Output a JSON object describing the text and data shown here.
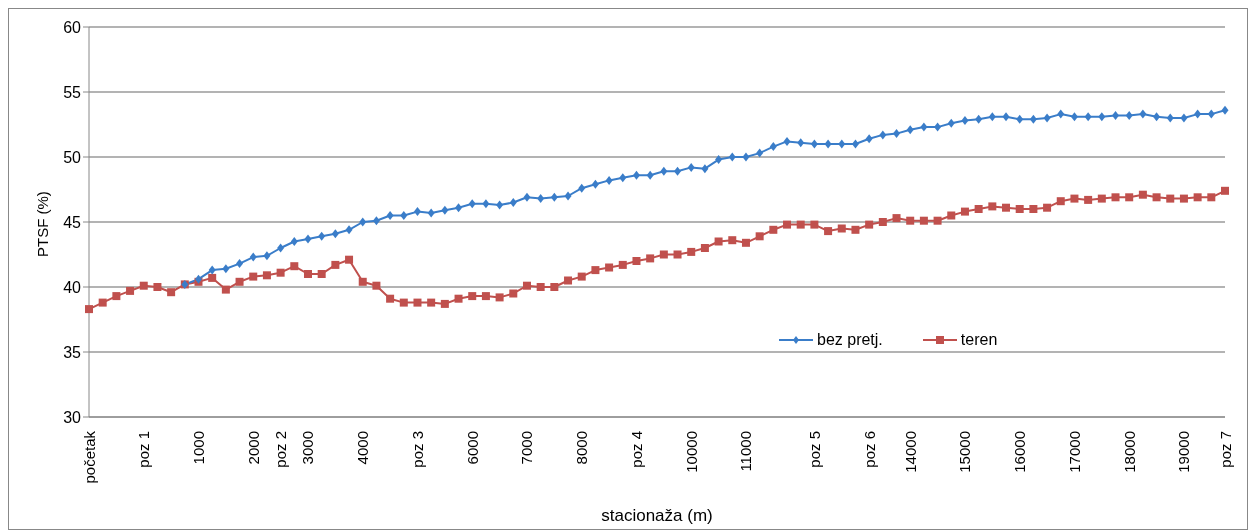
{
  "chart_data": {
    "type": "line",
    "xlabel": "stacionaža (m)",
    "ylabel": "PTSF (%)",
    "categories": [
      "početak",
      null,
      null,
      null,
      "poz 1",
      null,
      null,
      null,
      "1000",
      null,
      null,
      null,
      "2000",
      null,
      "poz 2",
      null,
      "3000",
      null,
      null,
      null,
      "4000",
      null,
      null,
      null,
      "poz 3",
      null,
      null,
      null,
      "6000",
      null,
      null,
      null,
      "7000",
      null,
      null,
      null,
      "8000",
      null,
      null,
      null,
      "poz 4",
      null,
      null,
      null,
      "10000",
      null,
      null,
      null,
      "11000",
      null,
      null,
      null,
      null,
      "poz 5",
      null,
      null,
      null,
      "poz 6",
      null,
      null,
      "14000",
      null,
      null,
      null,
      "15000",
      null,
      null,
      null,
      "16000",
      null,
      null,
      null,
      "17000",
      null,
      null,
      null,
      "18000",
      null,
      null,
      null,
      "19000",
      null,
      null,
      "poz 7"
    ],
    "series": [
      {
        "name": "bez pretj.",
        "color": "#3a7dc9",
        "marker": "diamond",
        "values": [
          null,
          null,
          null,
          null,
          null,
          null,
          null,
          40.2,
          40.6,
          41.3,
          41.4,
          41.8,
          42.3,
          42.4,
          43.0,
          43.5,
          43.7,
          43.9,
          44.1,
          44.4,
          45.0,
          45.1,
          45.5,
          45.5,
          45.8,
          45.7,
          45.9,
          46.1,
          46.4,
          46.4,
          46.3,
          46.5,
          46.9,
          46.8,
          46.9,
          47.0,
          47.6,
          47.9,
          48.2,
          48.4,
          48.6,
          48.6,
          48.9,
          48.9,
          49.2,
          49.1,
          49.8,
          50.0,
          50.0,
          50.3,
          50.8,
          51.2,
          51.1,
          51.0,
          51.0,
          51.0,
          51.0,
          51.4,
          51.7,
          51.8,
          52.1,
          52.3,
          52.3,
          52.6,
          52.8,
          52.9,
          53.1,
          53.1,
          52.9,
          52.9,
          53.0,
          53.3,
          53.1,
          53.1,
          53.1,
          53.2,
          53.2,
          53.3,
          53.1,
          53.0,
          53.0,
          53.3,
          53.3,
          53.6
        ]
      },
      {
        "name": "teren",
        "color": "#c0504d",
        "marker": "square",
        "values": [
          38.3,
          38.8,
          39.3,
          39.7,
          40.1,
          40.0,
          39.6,
          40.2,
          40.4,
          40.7,
          39.8,
          40.4,
          40.8,
          40.9,
          41.1,
          41.6,
          41.0,
          41.0,
          41.7,
          42.1,
          40.4,
          40.1,
          39.1,
          38.8,
          38.8,
          38.8,
          38.7,
          39.1,
          39.3,
          39.3,
          39.2,
          39.5,
          40.1,
          40.0,
          40.0,
          40.5,
          40.8,
          41.3,
          41.5,
          41.7,
          42.0,
          42.2,
          42.5,
          42.5,
          42.7,
          43.0,
          43.5,
          43.6,
          43.4,
          43.9,
          44.4,
          44.8,
          44.8,
          44.8,
          44.3,
          44.5,
          44.4,
          44.8,
          45.0,
          45.3,
          45.1,
          45.1,
          45.1,
          45.5,
          45.8,
          46.0,
          46.2,
          46.1,
          46.0,
          46.0,
          46.1,
          46.6,
          46.8,
          46.7,
          46.8,
          46.9,
          46.9,
          47.1,
          46.9,
          46.8,
          46.8,
          46.9,
          46.9,
          47.4
        ]
      }
    ],
    "ylim": [
      30,
      60
    ],
    "yticks": [
      30,
      35,
      40,
      45,
      50,
      55,
      60
    ],
    "grid": "y",
    "legend": "right",
    "line_style": "solid"
  }
}
